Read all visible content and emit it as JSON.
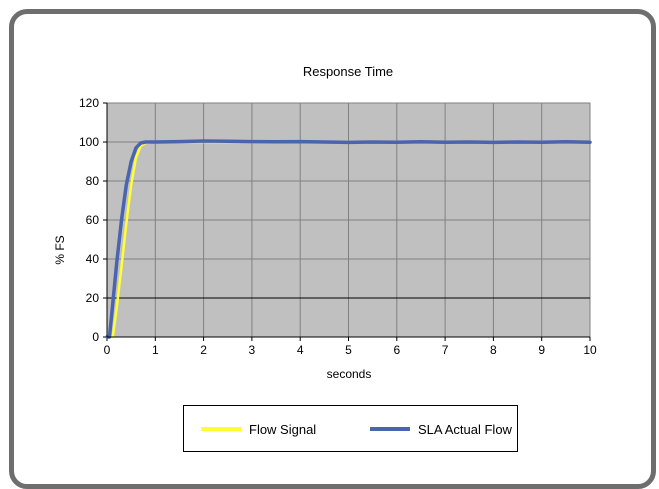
{
  "chart_data": {
    "type": "line",
    "title": "Response Time",
    "xlabel": "seconds",
    "ylabel": "% FS",
    "xlim": [
      0,
      10
    ],
    "ylim": [
      0,
      120
    ],
    "x_ticks": [
      "0",
      "1",
      "2",
      "3",
      "4",
      "5",
      "6",
      "7",
      "8",
      "9",
      "10"
    ],
    "y_ticks": [
      "0",
      "20",
      "40",
      "60",
      "80",
      "100",
      "120"
    ],
    "grid": true,
    "plot_background": "#c0c0c0",
    "legend_placement": "bottom",
    "series": [
      {
        "name": "Flow Signal",
        "color": "#ffff33",
        "x": [
          0,
          0.12,
          0.2,
          0.3,
          0.4,
          0.5,
          0.6,
          0.7,
          0.8,
          1.0,
          1.5,
          2.0,
          2.5,
          3.0,
          4.0,
          5.0,
          6.0,
          7.0,
          8.0,
          9.0,
          10.0
        ],
        "y": [
          0,
          0,
          15,
          36,
          58,
          78,
          92,
          98,
          99.5,
          100,
          100,
          100,
          100,
          100,
          100,
          100,
          100,
          100,
          100,
          100,
          100
        ]
      },
      {
        "name": "SLA Actual Flow",
        "color": "#4a64ad",
        "x": [
          0,
          0.05,
          0.1,
          0.2,
          0.3,
          0.4,
          0.5,
          0.6,
          0.7,
          0.8,
          1.0,
          1.5,
          2.0,
          2.5,
          3.0,
          3.5,
          4.0,
          4.5,
          5.0,
          5.5,
          6.0,
          6.5,
          7.0,
          7.5,
          8.0,
          8.5,
          9.0,
          9.5,
          10.0
        ],
        "y": [
          0,
          0,
          12,
          38,
          60,
          78,
          90,
          97,
          99.5,
          100,
          100,
          100.2,
          100.5,
          100.4,
          100.2,
          100.1,
          100.2,
          100,
          99.8,
          100,
          99.9,
          100.1,
          99.9,
          100,
          99.8,
          100,
          99.9,
          100.1,
          99.9
        ]
      }
    ]
  }
}
